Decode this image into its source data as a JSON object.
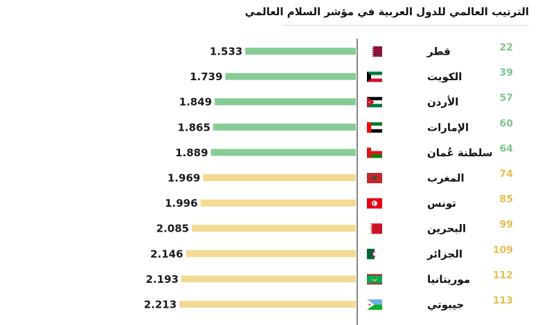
{
  "chart_data": {
    "type": "bar",
    "orientation": "horizontal",
    "title": "الترتيب العالمي للدول العربية في مؤشر السلام العالمي",
    "categories": [
      "قطر",
      "الكويت",
      "الأردن",
      "الإمارات",
      "سلطنة عُمان",
      "المغرب",
      "تونس",
      "البحرين",
      "الجزائر",
      "موريتانيا",
      "جيبوتي"
    ],
    "values": [
      1.533,
      1.739,
      1.849,
      1.865,
      1.889,
      1.969,
      1.996,
      2.085,
      2.146,
      2.193,
      2.213
    ],
    "value_labels": [
      "1.533",
      "1.739",
      "1.849",
      "1.865",
      "1.889",
      "1.969",
      "1.996",
      "2.085",
      "2.146",
      "2.193",
      "2.213"
    ],
    "ranks": [
      "22",
      "39",
      "57",
      "60",
      "64",
      "74",
      "85",
      "99",
      "109",
      "112",
      "113"
    ],
    "flags": [
      "qatar-flag",
      "kuwait-flag",
      "jordan-flag",
      "uae-flag",
      "oman-flag",
      "morocco-flag",
      "tunisia-flag",
      "bahrain-flag",
      "algeria-flag",
      "mauritania-flag",
      "djibouti-flag"
    ],
    "groups": [
      "green",
      "green",
      "green",
      "green",
      "green",
      "yellow",
      "yellow",
      "yellow",
      "yellow",
      "yellow",
      "yellow"
    ],
    "colors": {
      "green": "#86cc95",
      "yellow": "#f2da93",
      "green_rank": "#7fc48e",
      "yellow_rank": "#e5be4f",
      "axis": "#333333"
    },
    "xlim": [
      0,
      3.4
    ],
    "grid": false,
    "legend": "none"
  }
}
